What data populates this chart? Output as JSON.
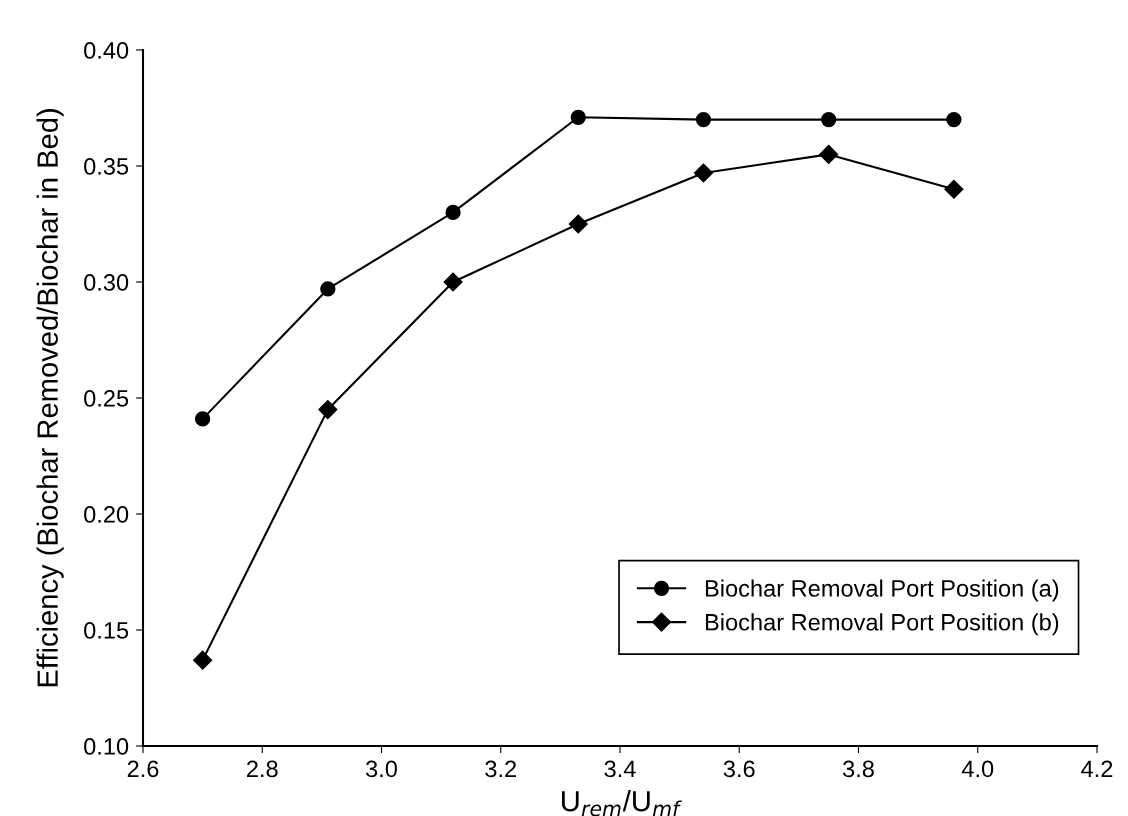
{
  "chart_data": {
    "type": "line",
    "xlabel": "U$_{rem}$/U$_{mf}$",
    "ylabel": "Efficiency (Biochar Removed/Biochar in Bed)",
    "x": [
      2.7,
      2.91,
      3.12,
      3.33,
      3.54,
      3.75,
      3.96
    ],
    "series": [
      {
        "name": "Biochar Removal Port Position (a)",
        "color": "#000000",
        "marker": "circle",
        "values": [
          0.241,
          0.297,
          0.33,
          0.371,
          0.37,
          0.37,
          0.37
        ]
      },
      {
        "name": "Biochar Removal Port Position (b)",
        "color": "#000000",
        "marker": "diamond",
        "values": [
          0.137,
          0.245,
          0.3,
          0.325,
          0.347,
          0.355,
          0.34
        ]
      }
    ],
    "xlim": [
      2.6,
      4.2
    ],
    "xticks": [
      {
        "value": 2.6,
        "label": "2.6"
      },
      {
        "value": 2.8,
        "label": "2.8"
      },
      {
        "value": 3.0,
        "label": "3.0"
      },
      {
        "value": 3.2,
        "label": "3.2"
      },
      {
        "value": 3.4,
        "label": "3.4"
      },
      {
        "value": 3.6,
        "label": "3.6"
      },
      {
        "value": 3.8,
        "label": "3.8"
      },
      {
        "value": 4.0,
        "label": "4.0"
      },
      {
        "value": 4.2,
        "label": "4.2"
      }
    ],
    "ylim": [
      0.1,
      0.4
    ],
    "yticks": [
      {
        "value": 0.1,
        "label": "0.10"
      },
      {
        "value": 0.15,
        "label": "0.15"
      },
      {
        "value": 0.2,
        "label": "0.20"
      },
      {
        "value": 0.25,
        "label": "0.25"
      },
      {
        "value": 0.3,
        "label": "0.30"
      },
      {
        "value": 0.35,
        "label": "0.35"
      },
      {
        "value": 0.4,
        "label": "0.40"
      }
    ],
    "grid": false,
    "legend": "bottom right",
    "line_style": "solid"
  }
}
